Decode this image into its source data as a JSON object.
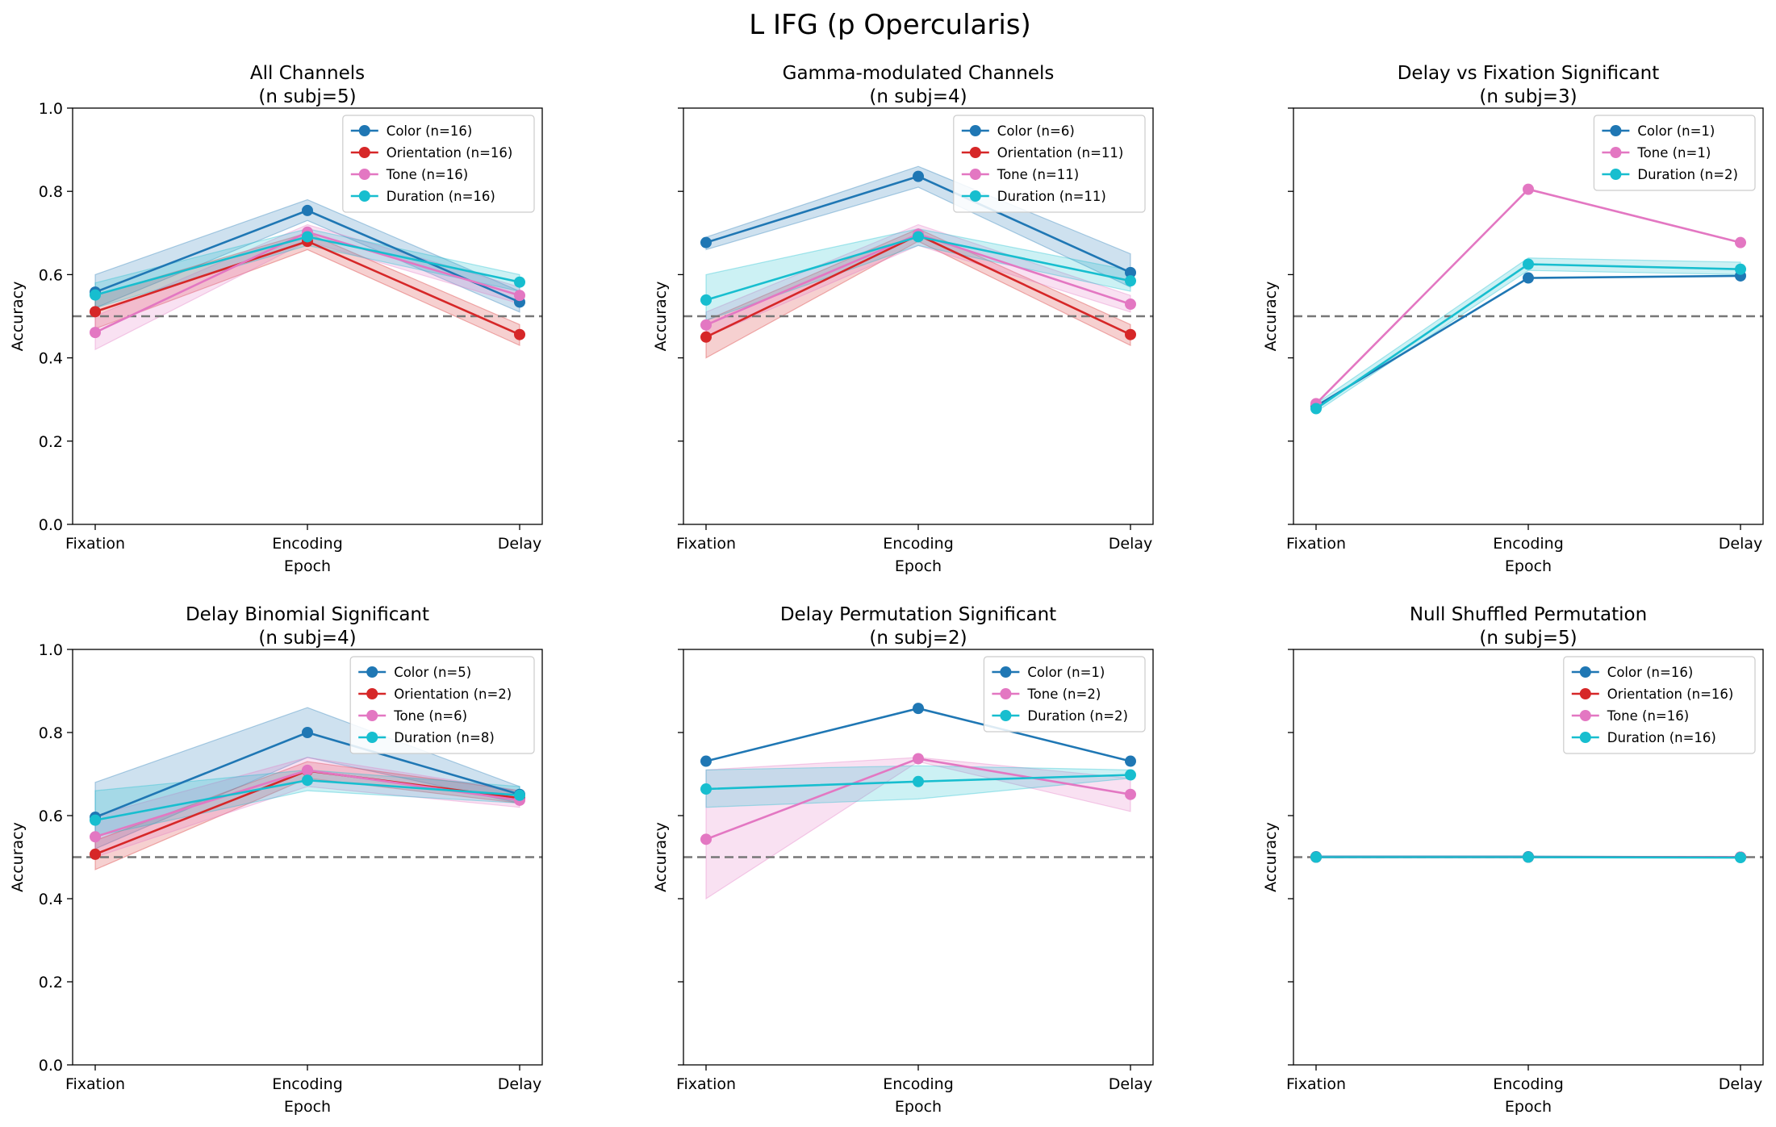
{
  "figure": {
    "title": "L IFG (p Opercularis)"
  },
  "colors": {
    "Color": "#1f77b4",
    "Orientation": "#d62728",
    "Tone": "#e377c2",
    "Duration": "#17becf",
    "chance": "#777777"
  },
  "chart_data": [
    {
      "type": "line",
      "title": "All Channels\n(n subj=5)",
      "xlabel": "Epoch",
      "ylabel": "Accuracy",
      "categories": [
        "Fixation",
        "Encoding",
        "Delay"
      ],
      "ylim": [
        0,
        1
      ],
      "yticks": [
        "0.0",
        "0.2",
        "0.4",
        "0.6",
        "0.8",
        "1.0"
      ],
      "chance": 0.5,
      "legend": "upper right",
      "series": [
        {
          "name": "Color (n=16)",
          "key": "Color",
          "values": [
            0.558,
            0.754,
            0.534
          ],
          "lower": [
            0.52,
            0.73,
            0.51
          ],
          "upper": [
            0.6,
            0.78,
            0.56
          ]
        },
        {
          "name": "Orientation (n=16)",
          "key": "Orientation",
          "values": [
            0.511,
            0.68,
            0.456
          ],
          "lower": [
            0.47,
            0.66,
            0.43
          ],
          "upper": [
            0.55,
            0.7,
            0.48
          ]
        },
        {
          "name": "Tone (n=16)",
          "key": "Tone",
          "values": [
            0.461,
            0.702,
            0.55
          ],
          "lower": [
            0.42,
            0.68,
            0.53
          ],
          "upper": [
            0.5,
            0.72,
            0.57
          ]
        },
        {
          "name": "Duration (n=16)",
          "key": "Duration",
          "values": [
            0.551,
            0.691,
            0.582
          ],
          "lower": [
            0.52,
            0.67,
            0.56
          ],
          "upper": [
            0.58,
            0.71,
            0.6
          ]
        }
      ]
    },
    {
      "type": "line",
      "title": "Gamma-modulated Channels\n(n subj=4)",
      "xlabel": "Epoch",
      "ylabel": "Accuracy",
      "categories": [
        "Fixation",
        "Encoding",
        "Delay"
      ],
      "ylim": [
        0,
        1
      ],
      "yticks": [],
      "chance": 0.5,
      "legend": "upper right",
      "series": [
        {
          "name": "Color (n=6)",
          "key": "Color",
          "values": [
            0.677,
            0.836,
            0.605
          ],
          "lower": [
            0.66,
            0.81,
            0.57
          ],
          "upper": [
            0.69,
            0.86,
            0.65
          ]
        },
        {
          "name": "Orientation (n=11)",
          "key": "Orientation",
          "values": [
            0.45,
            0.695,
            0.456
          ],
          "lower": [
            0.4,
            0.68,
            0.43
          ],
          "upper": [
            0.49,
            0.71,
            0.48
          ]
        },
        {
          "name": "Tone (n=11)",
          "key": "Tone",
          "values": [
            0.479,
            0.697,
            0.529
          ],
          "lower": [
            0.45,
            0.67,
            0.51
          ],
          "upper": [
            0.51,
            0.72,
            0.55
          ]
        },
        {
          "name": "Duration (n=11)",
          "key": "Duration",
          "values": [
            0.539,
            0.691,
            0.585
          ],
          "lower": [
            0.49,
            0.67,
            0.56
          ],
          "upper": [
            0.6,
            0.71,
            0.61
          ]
        }
      ]
    },
    {
      "type": "line",
      "title": "Delay vs Fixation Significant\n(n subj=3)",
      "xlabel": "Epoch",
      "ylabel": "Accuracy",
      "categories": [
        "Fixation",
        "Encoding",
        "Delay"
      ],
      "ylim": [
        0,
        1
      ],
      "yticks": [],
      "chance": 0.5,
      "legend": "upper right",
      "series": [
        {
          "name": "Color (n=1)",
          "key": "Color",
          "values": [
            0.284,
            0.592,
            0.597
          ]
        },
        {
          "name": "Tone (n=1)",
          "key": "Tone",
          "values": [
            0.29,
            0.805,
            0.677
          ]
        },
        {
          "name": "Duration (n=2)",
          "key": "Duration",
          "values": [
            0.278,
            0.625,
            0.613
          ],
          "lower": [
            0.27,
            0.61,
            0.6
          ],
          "upper": [
            0.29,
            0.64,
            0.63
          ]
        }
      ]
    },
    {
      "type": "line",
      "title": "Delay Binomial Significant\n(n subj=4)",
      "xlabel": "Epoch",
      "ylabel": "Accuracy",
      "categories": [
        "Fixation",
        "Encoding",
        "Delay"
      ],
      "ylim": [
        0,
        1
      ],
      "yticks": [
        "0.0",
        "0.2",
        "0.4",
        "0.6",
        "0.8",
        "1.0"
      ],
      "chance": 0.5,
      "legend": "upper right",
      "series": [
        {
          "name": "Color (n=5)",
          "key": "Color",
          "values": [
            0.596,
            0.8,
            0.651
          ],
          "lower": [
            0.52,
            0.74,
            0.63
          ],
          "upper": [
            0.68,
            0.86,
            0.67
          ]
        },
        {
          "name": "Orientation (n=2)",
          "key": "Orientation",
          "values": [
            0.507,
            0.708,
            0.642
          ],
          "lower": [
            0.47,
            0.69,
            0.63
          ],
          "upper": [
            0.54,
            0.73,
            0.66
          ]
        },
        {
          "name": "Tone (n=6)",
          "key": "Tone",
          "values": [
            0.549,
            0.709,
            0.637
          ],
          "lower": [
            0.5,
            0.67,
            0.62
          ],
          "upper": [
            0.6,
            0.74,
            0.66
          ]
        },
        {
          "name": "Duration (n=8)",
          "key": "Duration",
          "values": [
            0.589,
            0.685,
            0.649
          ],
          "lower": [
            0.55,
            0.66,
            0.63
          ],
          "upper": [
            0.66,
            0.71,
            0.67
          ]
        }
      ]
    },
    {
      "type": "line",
      "title": "Delay Permutation Significant\n(n subj=2)",
      "xlabel": "Epoch",
      "ylabel": "Accuracy",
      "categories": [
        "Fixation",
        "Encoding",
        "Delay"
      ],
      "ylim": [
        0,
        1
      ],
      "yticks": [],
      "chance": 0.5,
      "legend": "upper right",
      "series": [
        {
          "name": "Color (n=1)",
          "key": "Color",
          "values": [
            0.731,
            0.858,
            0.731
          ]
        },
        {
          "name": "Tone (n=2)",
          "key": "Tone",
          "values": [
            0.543,
            0.737,
            0.651
          ],
          "lower": [
            0.4,
            0.73,
            0.61
          ],
          "upper": [
            0.71,
            0.74,
            0.69
          ]
        },
        {
          "name": "Duration (n=2)",
          "key": "Duration",
          "values": [
            0.664,
            0.682,
            0.698
          ],
          "lower": [
            0.62,
            0.64,
            0.69
          ],
          "upper": [
            0.71,
            0.72,
            0.71
          ]
        }
      ]
    },
    {
      "type": "line",
      "title": "Null Shuffled Permutation\n(n subj=5)",
      "xlabel": "Epoch",
      "ylabel": "Accuracy",
      "categories": [
        "Fixation",
        "Encoding",
        "Delay"
      ],
      "ylim": [
        0,
        1
      ],
      "yticks": [],
      "chance": 0.5,
      "legend": "upper right",
      "series": [
        {
          "name": "Color (n=16)",
          "key": "Color",
          "values": [
            0.501,
            0.501,
            0.5
          ]
        },
        {
          "name": "Orientation (n=16)",
          "key": "Orientation",
          "values": [
            0.5,
            0.5,
            0.5
          ]
        },
        {
          "name": "Tone (n=16)",
          "key": "Tone",
          "values": [
            0.5,
            0.5,
            0.5
          ]
        },
        {
          "name": "Duration (n=16)",
          "key": "Duration",
          "values": [
            0.5,
            0.5,
            0.499
          ]
        }
      ]
    }
  ]
}
